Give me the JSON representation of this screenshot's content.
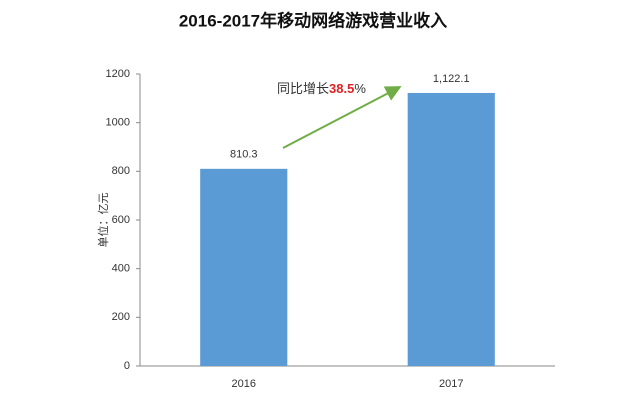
{
  "chart_data": {
    "type": "bar",
    "title": "2016-2017年移动网络游戏营业收入",
    "y_label": "单位：亿元",
    "categories": [
      "2016",
      "2017"
    ],
    "values": [
      810.3,
      1122.1
    ],
    "value_labels": [
      "810.3",
      "1,122.1"
    ],
    "color": "#5b9bd5",
    "ylim": [
      0,
      1200
    ],
    "yticks": [
      0,
      200,
      400,
      600,
      800,
      1000,
      1200
    ],
    "grid": false,
    "annotation": {
      "prefix": "同比增长",
      "highlight": "38.5",
      "suffix": "%",
      "highlight_color": "#e02020",
      "arrow_color": "#70ad47"
    }
  }
}
